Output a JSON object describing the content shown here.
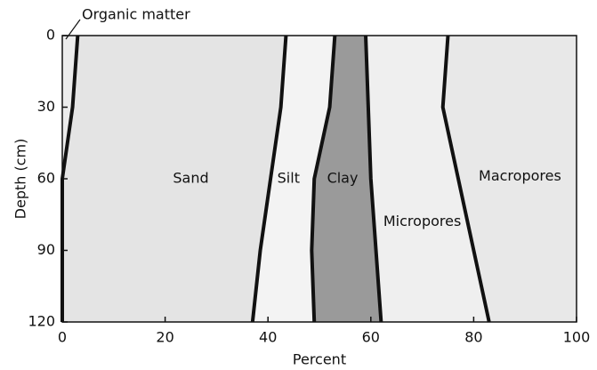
{
  "chart_data": {
    "type": "stacked-area",
    "x_label": "Percent",
    "y_label": "Depth (cm)",
    "y": [
      0,
      30,
      60,
      90,
      120
    ],
    "series": [
      {
        "name": "Organic matter",
        "color": "#ececec",
        "values": [
          3,
          2,
          0,
          0,
          0
        ]
      },
      {
        "name": "Sand",
        "color": "#e4e4e4",
        "values": [
          40.5,
          40.5,
          40.5,
          38.5,
          37
        ]
      },
      {
        "name": "Silt",
        "color": "#f3f3f3",
        "values": [
          9.5,
          9.5,
          8.5,
          10,
          12
        ]
      },
      {
        "name": "Clay",
        "color": "#9a9a9a",
        "values": [
          6,
          7.5,
          11,
          12.5,
          13
        ]
      },
      {
        "name": "Micropores",
        "color": "#efefef",
        "values": [
          16,
          14.5,
          17,
          19,
          21
        ]
      },
      {
        "name": "Macropores",
        "color": "#e8e8e8",
        "values": [
          25,
          26,
          23,
          20,
          17
        ]
      }
    ],
    "xlim": [
      0,
      100
    ],
    "xticks": [
      0,
      20,
      40,
      60,
      80,
      100
    ],
    "ylim": [
      120,
      0
    ],
    "yticks": [
      0,
      30,
      60,
      90,
      120
    ]
  }
}
